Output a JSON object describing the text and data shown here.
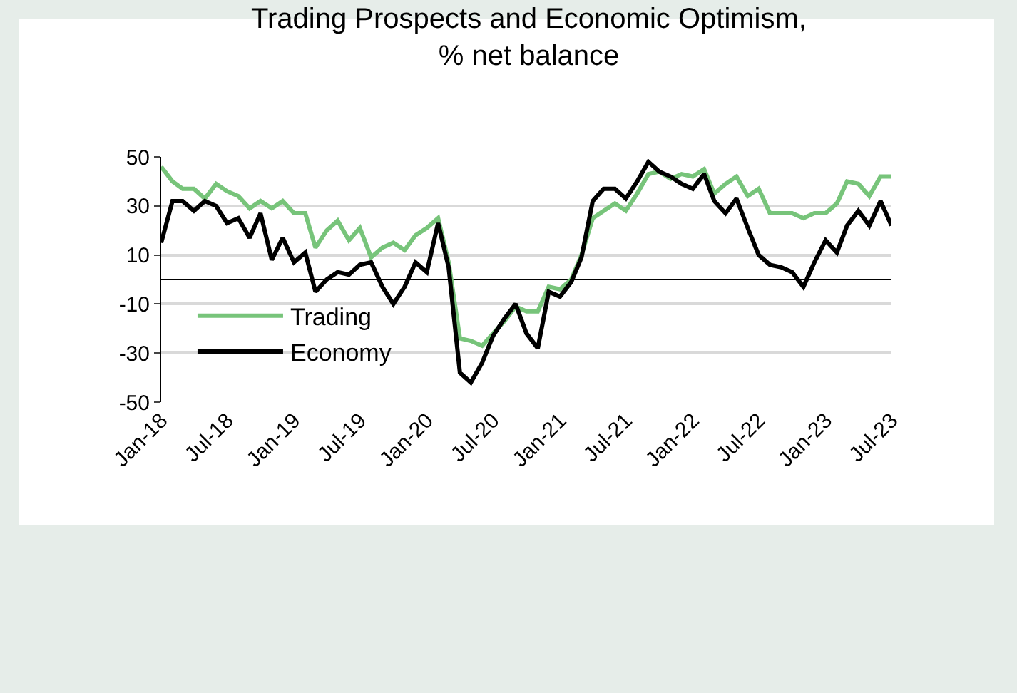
{
  "chart_data": {
    "type": "line",
    "title": "Trading Prospects and Economic Optimism,\n% net balance",
    "x": [
      "2018-01",
      "2018-02",
      "2018-03",
      "2018-04",
      "2018-05",
      "2018-06",
      "2018-07",
      "2018-08",
      "2018-09",
      "2018-10",
      "2018-11",
      "2018-12",
      "2019-01",
      "2019-02",
      "2019-03",
      "2019-04",
      "2019-05",
      "2019-06",
      "2019-07",
      "2019-08",
      "2019-09",
      "2019-10",
      "2019-11",
      "2019-12",
      "2020-01",
      "2020-02",
      "2020-03",
      "2020-04",
      "2020-05",
      "2020-06",
      "2020-07",
      "2020-08",
      "2020-09",
      "2020-10",
      "2020-11",
      "2020-12",
      "2021-01",
      "2021-02",
      "2021-03",
      "2021-04",
      "2021-05",
      "2021-06",
      "2021-07",
      "2021-08",
      "2021-09",
      "2021-10",
      "2021-11",
      "2021-12",
      "2022-01",
      "2022-02",
      "2022-03",
      "2022-04",
      "2022-05",
      "2022-06",
      "2022-07",
      "2022-08",
      "2022-09",
      "2022-10",
      "2022-11",
      "2022-12",
      "2023-01",
      "2023-02",
      "2023-03",
      "2023-04",
      "2023-05",
      "2023-06",
      "2023-07"
    ],
    "series": [
      {
        "name": "Trading",
        "color": "#77c47a",
        "values": [
          46,
          40,
          37,
          37,
          33,
          39,
          36,
          34,
          29,
          32,
          29,
          32,
          27,
          27,
          13,
          20,
          24,
          16,
          21,
          9,
          13,
          15,
          12,
          18,
          21,
          25,
          7,
          -24,
          -25,
          -27,
          -22,
          -17,
          -11,
          -13,
          -13,
          -3,
          -4,
          0,
          10,
          25,
          28,
          31,
          28,
          35,
          43,
          44,
          41,
          43,
          42,
          45,
          35,
          39,
          42,
          34,
          37,
          27,
          27,
          27,
          25,
          27,
          27,
          31,
          40,
          39,
          34,
          42,
          42
        ]
      },
      {
        "name": "Economy",
        "color": "#000000",
        "values": [
          15,
          32,
          32,
          28,
          32,
          30,
          23,
          25,
          17,
          27,
          8,
          17,
          7,
          11,
          -5,
          0,
          3,
          2,
          6,
          7,
          -3,
          -10,
          -3,
          7,
          3,
          23,
          5,
          -38,
          -42,
          -34,
          -23,
          -16,
          -10,
          -22,
          -28,
          -5,
          -7,
          -1,
          9,
          32,
          37,
          37,
          33,
          40,
          48,
          44,
          42,
          39,
          37,
          43,
          32,
          27,
          33,
          21,
          10,
          6,
          5,
          3,
          -3,
          7,
          16,
          11,
          22,
          28,
          22,
          32,
          22
        ]
      }
    ],
    "xlim": [
      "2018-01",
      "2023-07"
    ],
    "xticks": [
      {
        "value": "2018-01",
        "label": "Jan-18"
      },
      {
        "value": "2018-07",
        "label": "Jul-18"
      },
      {
        "value": "2019-01",
        "label": "Jan-19"
      },
      {
        "value": "2019-07",
        "label": "Jul-19"
      },
      {
        "value": "2020-01",
        "label": "Jan-20"
      },
      {
        "value": "2020-07",
        "label": "Jul-20"
      },
      {
        "value": "2021-01",
        "label": "Jan-21"
      },
      {
        "value": "2021-07",
        "label": "Jul-21"
      },
      {
        "value": "2022-01",
        "label": "Jan-22"
      },
      {
        "value": "2022-07",
        "label": "Jul-22"
      },
      {
        "value": "2023-01",
        "label": "Jan-23"
      },
      {
        "value": "2023-07",
        "label": "Jul-23"
      }
    ],
    "ylim": [
      -50,
      50
    ],
    "yticks": [
      -50,
      -30,
      -10,
      10,
      30,
      50
    ],
    "grid": "y",
    "legend": "bottom left",
    "marker": "none",
    "line_style": "solid"
  }
}
